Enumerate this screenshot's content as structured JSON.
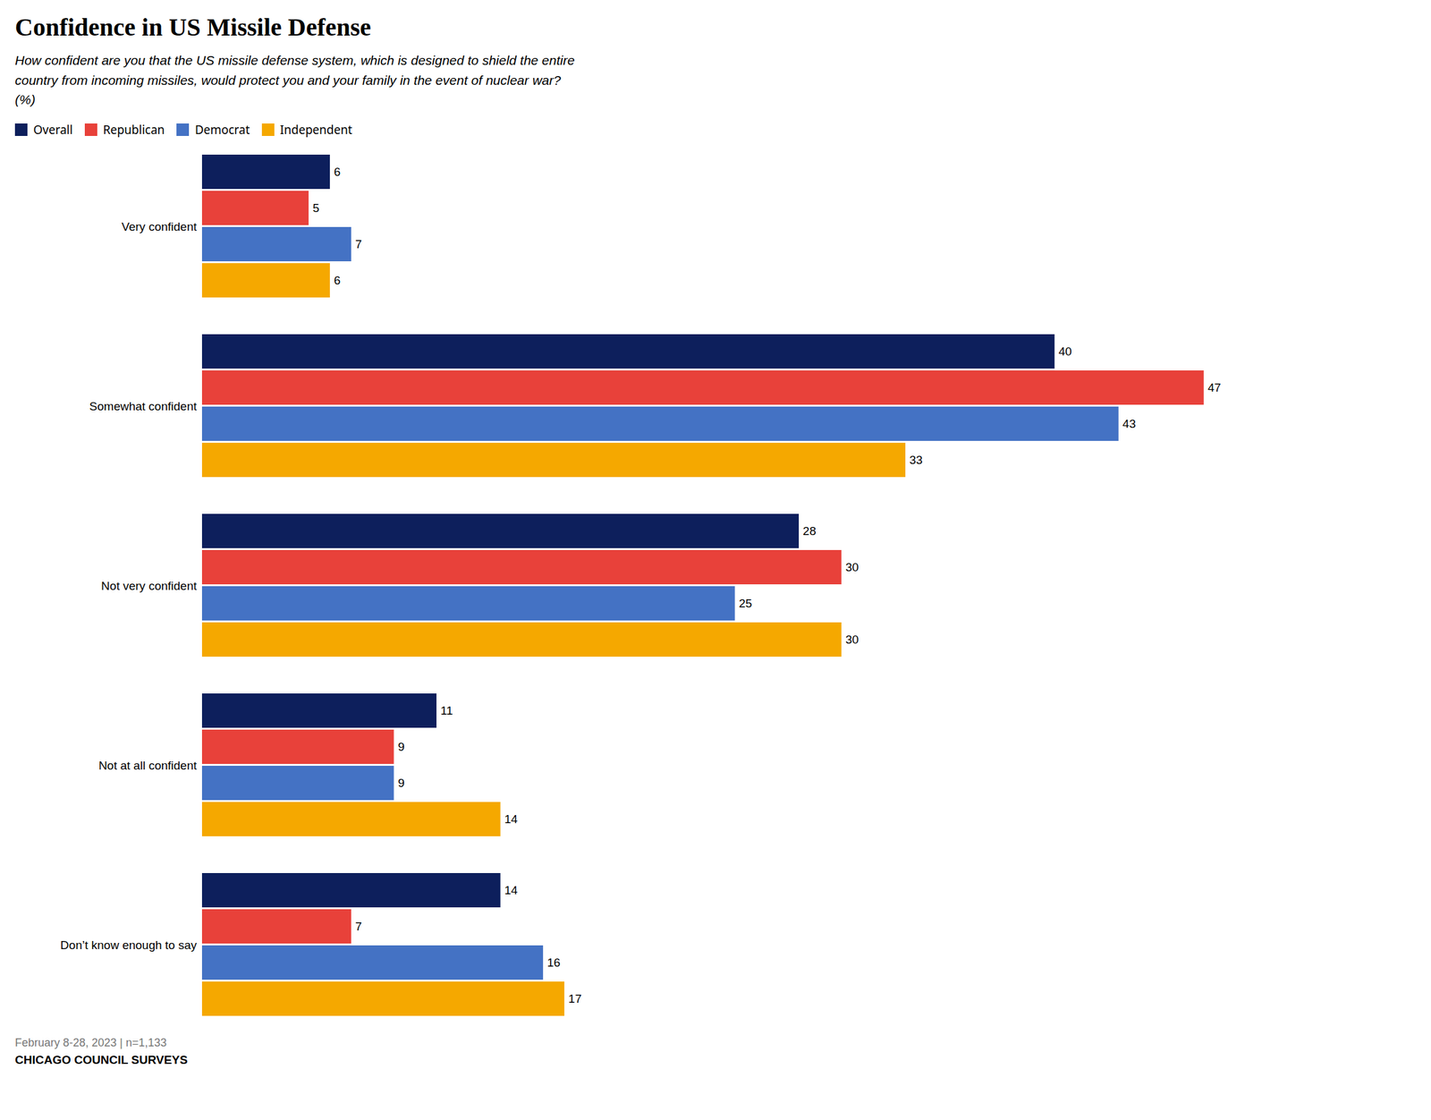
{
  "chart_data": {
    "type": "bar",
    "orientation": "horizontal",
    "title": "Confidence in US Missile Defense",
    "subtitle": "How confident are you that the US missile defense system, which is designed to shield the entire\ncountry from incoming missiles, would protect you and your family in the event of nuclear war?\n(%)",
    "footnote": "February 8-28, 2023 | n=1,133",
    "source": "CHICAGO COUNCIL SURVEYS",
    "categories": [
      "Very confident",
      "Somewhat confident",
      "Not very confident",
      "Not at all confident",
      "Don’t know enough to say"
    ],
    "series": [
      {
        "name": "Overall",
        "color": "#0d1f5c",
        "values": [
          6,
          40,
          28,
          11,
          14
        ]
      },
      {
        "name": "Republican",
        "color": "#e8413a",
        "values": [
          5,
          47,
          30,
          9,
          7
        ]
      },
      {
        "name": "Democrat",
        "color": "#4472c4",
        "values": [
          7,
          43,
          25,
          9,
          16
        ]
      },
      {
        "name": "Independent",
        "color": "#f5a800",
        "values": [
          6,
          33,
          30,
          14,
          17
        ]
      }
    ],
    "xlim": [
      0,
      55
    ],
    "tick_labels": "y",
    "data_labels": true,
    "legend": "upper left",
    "grid": false
  }
}
